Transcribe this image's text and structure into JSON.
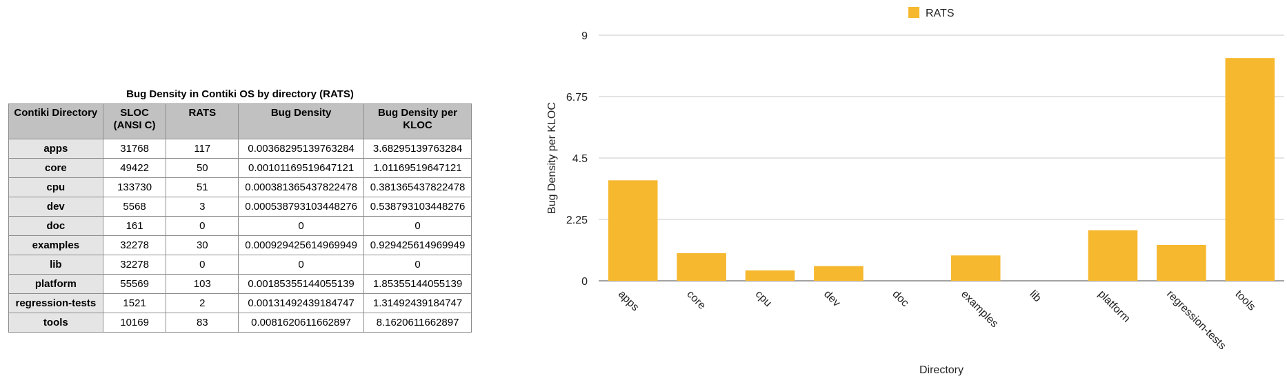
{
  "table": {
    "title": "Bug Density in Contiki OS by directory (RATS)",
    "headers": [
      "Contiki Directory",
      "SLOC (ANSI C)",
      "RATS",
      "Bug Density",
      "Bug Density per KLOC"
    ],
    "rows": [
      [
        "apps",
        "31768",
        "117",
        "0.00368295139763284",
        "3.68295139763284"
      ],
      [
        "core",
        "49422",
        "50",
        "0.00101169519647121",
        "1.01169519647121"
      ],
      [
        "cpu",
        "133730",
        "51",
        "0.000381365437822478",
        "0.381365437822478"
      ],
      [
        "dev",
        "5568",
        "3",
        "0.000538793103448276",
        "0.538793103448276"
      ],
      [
        "doc",
        "161",
        "0",
        "0",
        "0"
      ],
      [
        "examples",
        "32278",
        "30",
        "0.000929425614969949",
        "0.929425614969949"
      ],
      [
        "lib",
        "32278",
        "0",
        "0",
        "0"
      ],
      [
        "platform",
        "55569",
        "103",
        "0.00185355144055139",
        "1.85355144055139"
      ],
      [
        "regression-tests",
        "1521",
        "2",
        "0.00131492439184747",
        "1.31492439184747"
      ],
      [
        "tools",
        "10169",
        "83",
        "0.0081620611662897",
        "8.1620611662897"
      ]
    ]
  },
  "chart_data": {
    "type": "bar",
    "categories": [
      "apps",
      "core",
      "cpu",
      "dev",
      "doc",
      "examples",
      "lib",
      "platform",
      "regression-tests",
      "tools"
    ],
    "series": [
      {
        "name": "RATS",
        "values": [
          3.68295139763284,
          1.01169519647121,
          0.381365437822478,
          0.538793103448276,
          0,
          0.929425614969949,
          0,
          1.85355144055139,
          1.31492439184747,
          8.1620611662897
        ]
      }
    ],
    "title": "",
    "xlabel": "Directory",
    "ylabel": "Bug Density per KLOC",
    "ylim": [
      0,
      9
    ],
    "yticks": [
      "0",
      "2.25",
      "4.5",
      "6.75",
      "9"
    ],
    "grid": true,
    "legend_position": "top-center",
    "colors": {
      "bar": "#f6b82e",
      "grid": "#c8c8c8",
      "axis": "#444444"
    }
  }
}
